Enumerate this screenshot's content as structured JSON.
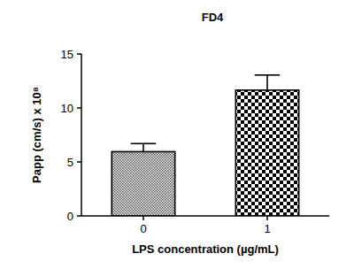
{
  "chart_data": {
    "type": "bar",
    "title": "FD4",
    "x_label": "LPS concentration (µg/mL)",
    "y_label": "Papp (cm/s)  x 10⁸",
    "categories": [
      "0",
      "1"
    ],
    "values": [
      5.95,
      11.65
    ],
    "errors": [
      0.75,
      1.4
    ],
    "colors": [
      "#5a5a5a",
      "#000000"
    ],
    "ylim": [
      0,
      15
    ],
    "yticks": [
      0,
      5,
      10,
      15
    ],
    "grid": false
  }
}
